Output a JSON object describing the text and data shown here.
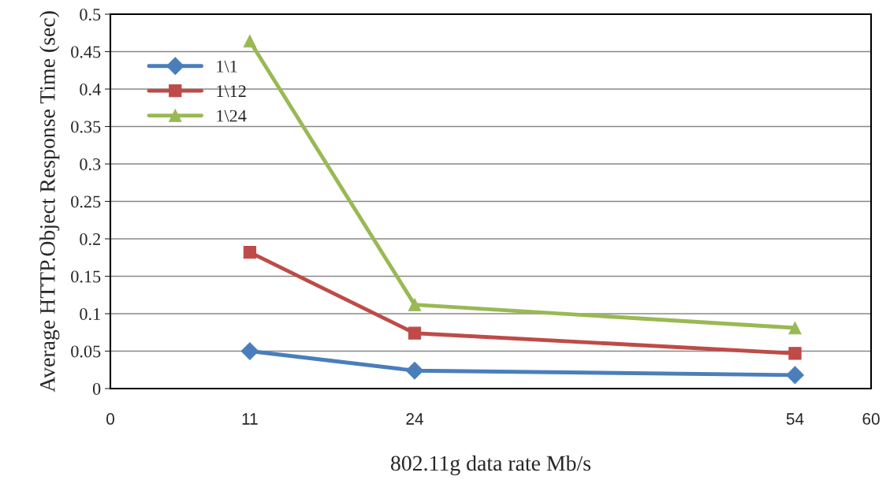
{
  "chart_data": {
    "type": "line",
    "xlabel": "802.11g data rate Mb/s",
    "ylabel": "Average HTTP.Object Response Time (sec)",
    "x": [
      11,
      24,
      54
    ],
    "series": [
      {
        "name": "1\\1",
        "color": "#4a7ebb",
        "marker": "diamond",
        "values": [
          0.05,
          0.024,
          0.018
        ]
      },
      {
        "name": "1\\12",
        "color": "#be4b48",
        "marker": "square",
        "values": [
          0.182,
          0.074,
          0.047
        ]
      },
      {
        "name": "1\\24",
        "color": "#98b954",
        "marker": "triangle",
        "values": [
          0.464,
          0.112,
          0.081
        ]
      }
    ],
    "xlim": [
      0,
      60
    ],
    "xticks": [
      0,
      11,
      24,
      54,
      60
    ],
    "ylim": [
      0,
      0.5
    ],
    "yticks": [
      0,
      0.05,
      0.1,
      0.15,
      0.2,
      0.25,
      0.3,
      0.35,
      0.4,
      0.45,
      0.5
    ],
    "grid": "y",
    "legend": "top left"
  }
}
